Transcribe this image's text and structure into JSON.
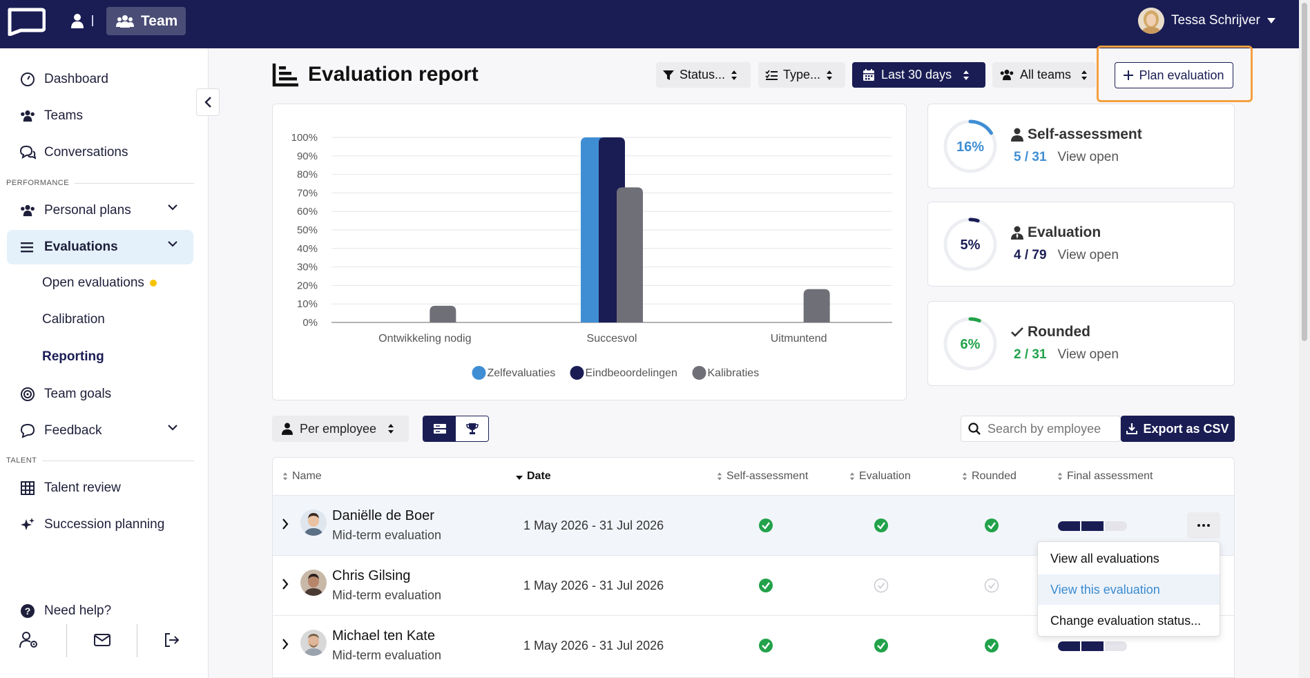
{
  "topbar": {
    "team_label": "Team",
    "user_name": "Tessa Schrijver"
  },
  "sidebar": {
    "items": [
      {
        "label": "Dashboard"
      },
      {
        "label": "Teams"
      },
      {
        "label": "Conversations"
      }
    ],
    "performance_label": "PERFORMANCE",
    "personal_plans": "Personal plans",
    "evaluations": "Evaluations",
    "sub_items": [
      "Open evaluations",
      "Calibration",
      "Reporting"
    ],
    "team_goals": "Team goals",
    "feedback": "Feedback",
    "talent_label": "TALENT",
    "talent_review": "Talent review",
    "succession_planning": "Succession planning",
    "need_help": "Need help?"
  },
  "header": {
    "title": "Evaluation report",
    "filters": [
      "Status...",
      "Type...",
      "Last 30 days",
      "All teams"
    ],
    "plan_button": "Plan evaluation"
  },
  "chart_data": {
    "type": "bar",
    "categories": [
      "Ontwikkeling nodig",
      "Succesvol",
      "Uitmuntend"
    ],
    "series": [
      {
        "name": "Zelfevaluaties",
        "values": [
          0,
          100,
          0
        ],
        "color": "#3f8ed4"
      },
      {
        "name": "Eindbeoordelingen",
        "values": [
          0,
          100,
          0
        ],
        "color": "#1a1d54"
      },
      {
        "name": "Kalibraties",
        "values": [
          9,
          73,
          18
        ],
        "color": "#6f6f77"
      }
    ],
    "yticks": [
      "0%",
      "10%",
      "20%",
      "30%",
      "40%",
      "50%",
      "60%",
      "70%",
      "80%",
      "90%",
      "100%"
    ],
    "ylim": [
      0,
      100
    ],
    "legend": "bottom",
    "grid": true
  },
  "stats": [
    {
      "percent": "16%",
      "value": 16,
      "title": "Self-assessment",
      "count": "5 / 31",
      "link": "View open",
      "color": "#3f8ed4",
      "icon": "person-icon"
    },
    {
      "percent": "5%",
      "value": 5,
      "title": "Evaluation",
      "count": "4 / 79",
      "link": "View open",
      "color": "#1a1d54",
      "icon": "person-tie-icon"
    },
    {
      "percent": "6%",
      "value": 6,
      "title": "Rounded",
      "count": "2 / 31",
      "link": "View open",
      "color": "#22a24a",
      "icon": "check-icon"
    }
  ],
  "controls": {
    "per_employee": "Per employee",
    "search_placeholder": "Search by employee",
    "export_label": "Export as CSV"
  },
  "table": {
    "columns": [
      "Name",
      "Date",
      "Self-assessment",
      "Evaluation",
      "Rounded",
      "Final assessment"
    ],
    "rows": [
      {
        "name": "Daniëlle de Boer",
        "type": "Mid-term evaluation",
        "date": "1 May 2026 - 31 Jul 2026",
        "self": true,
        "eval": true,
        "rounded": true
      },
      {
        "name": "Chris Gilsing",
        "type": "Mid-term evaluation",
        "date": "1 May 2026 - 31 Jul 2026",
        "self": true,
        "eval": false,
        "rounded": false
      },
      {
        "name": "Michael ten Kate",
        "type": "Mid-term evaluation",
        "date": "1 May 2026 - 31 Jul 2026",
        "self": true,
        "eval": true,
        "rounded": true
      }
    ]
  },
  "dropdown": {
    "items": [
      "View all evaluations",
      "View this evaluation",
      "Change evaluation status..."
    ]
  }
}
